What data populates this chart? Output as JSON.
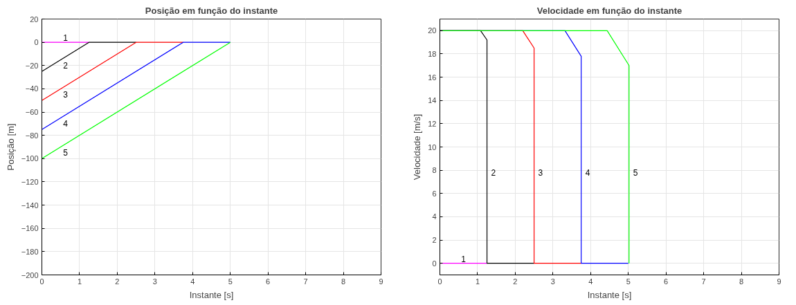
{
  "chart_data": [
    {
      "type": "line",
      "title": "Posição em função do instante",
      "xlabel": "Instante [s]",
      "ylabel": "Posição [m]",
      "xlim": [
        0,
        9
      ],
      "ylim": [
        -200,
        20
      ],
      "xticks": [
        0,
        1,
        2,
        3,
        4,
        5,
        6,
        7,
        8,
        9
      ],
      "yticks": [
        -200,
        -180,
        -160,
        -140,
        -120,
        -100,
        -80,
        -60,
        -40,
        -20,
        0,
        20
      ],
      "grid": true,
      "series": [
        {
          "color": "#ff00ff",
          "x": [
            0,
            1.25
          ],
          "values": [
            0,
            0
          ]
        },
        {
          "color": "#000000",
          "x": [
            0,
            1.25,
            2.5
          ],
          "values": [
            -25,
            0,
            0
          ]
        },
        {
          "color": "#ff0000",
          "x": [
            0,
            2.5,
            3.75
          ],
          "values": [
            -50,
            0,
            0
          ]
        },
        {
          "color": "#0000ff",
          "x": [
            0,
            3.75,
            5
          ],
          "values": [
            -75,
            0,
            0
          ]
        },
        {
          "color": "#00ff00",
          "x": [
            0,
            5
          ],
          "values": [
            -100,
            0
          ]
        }
      ],
      "annotations": [
        "1",
        "2",
        "3",
        "4",
        "5"
      ]
    },
    {
      "type": "line",
      "title": "Velocidade em função do instante",
      "xlabel": "Instante [s]",
      "ylabel": "Velocidade [m/s]",
      "xlim": [
        0,
        9
      ],
      "ylim": [
        -1,
        21
      ],
      "xticks": [
        0,
        1,
        2,
        3,
        4,
        5,
        6,
        7,
        8,
        9
      ],
      "yticks": [
        0,
        2,
        4,
        6,
        8,
        10,
        12,
        14,
        16,
        18,
        20
      ],
      "grid": true,
      "series": [
        {
          "color": "#ff00ff",
          "x": [
            0,
            1.25
          ],
          "values": [
            0,
            0
          ]
        },
        {
          "color": "#000000",
          "x": [
            0,
            1.08,
            1.25,
            1.25,
            2.5
          ],
          "values": [
            20,
            20,
            19.2,
            0,
            0
          ]
        },
        {
          "color": "#ff0000",
          "x": [
            0,
            2.2,
            2.5,
            2.5,
            3.75
          ],
          "values": [
            20,
            20,
            18.5,
            0,
            0
          ]
        },
        {
          "color": "#0000ff",
          "x": [
            0,
            3.32,
            3.75,
            3.75,
            5
          ],
          "values": [
            20,
            20,
            17.8,
            0,
            0
          ]
        },
        {
          "color": "#00ff00",
          "x": [
            0,
            4.44,
            5.02,
            5.02
          ],
          "values": [
            20,
            20,
            17,
            0
          ]
        }
      ],
      "annotations": [
        "1",
        "2",
        "3",
        "4",
        "5"
      ]
    }
  ]
}
